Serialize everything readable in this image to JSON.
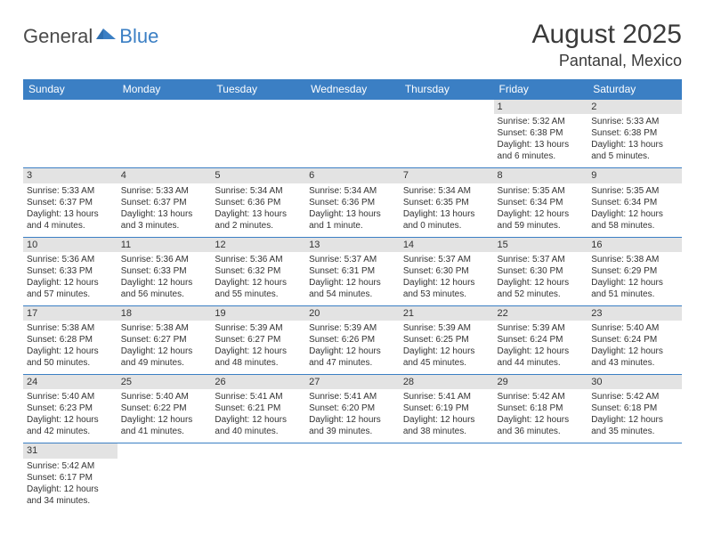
{
  "logo": {
    "part1": "General",
    "part2": "Blue"
  },
  "title": "August 2025",
  "location": "Pantanal, Mexico",
  "colors": {
    "header_bg": "#3b7fc4",
    "header_text": "#ffffff",
    "daynum_bg": "#e3e3e3",
    "border": "#3b7fc4",
    "text": "#333333",
    "logo_gray": "#4a4a4a",
    "logo_blue": "#3b7fc4"
  },
  "weekdays": [
    "Sunday",
    "Monday",
    "Tuesday",
    "Wednesday",
    "Thursday",
    "Friday",
    "Saturday"
  ],
  "weeks": [
    {
      "nums": [
        "",
        "",
        "",
        "",
        "",
        "1",
        "2"
      ],
      "cells": [
        null,
        null,
        null,
        null,
        null,
        {
          "sunrise": "Sunrise: 5:32 AM",
          "sunset": "Sunset: 6:38 PM",
          "day1": "Daylight: 13 hours",
          "day2": "and 6 minutes."
        },
        {
          "sunrise": "Sunrise: 5:33 AM",
          "sunset": "Sunset: 6:38 PM",
          "day1": "Daylight: 13 hours",
          "day2": "and 5 minutes."
        }
      ]
    },
    {
      "nums": [
        "3",
        "4",
        "5",
        "6",
        "7",
        "8",
        "9"
      ],
      "cells": [
        {
          "sunrise": "Sunrise: 5:33 AM",
          "sunset": "Sunset: 6:37 PM",
          "day1": "Daylight: 13 hours",
          "day2": "and 4 minutes."
        },
        {
          "sunrise": "Sunrise: 5:33 AM",
          "sunset": "Sunset: 6:37 PM",
          "day1": "Daylight: 13 hours",
          "day2": "and 3 minutes."
        },
        {
          "sunrise": "Sunrise: 5:34 AM",
          "sunset": "Sunset: 6:36 PM",
          "day1": "Daylight: 13 hours",
          "day2": "and 2 minutes."
        },
        {
          "sunrise": "Sunrise: 5:34 AM",
          "sunset": "Sunset: 6:36 PM",
          "day1": "Daylight: 13 hours",
          "day2": "and 1 minute."
        },
        {
          "sunrise": "Sunrise: 5:34 AM",
          "sunset": "Sunset: 6:35 PM",
          "day1": "Daylight: 13 hours",
          "day2": "and 0 minutes."
        },
        {
          "sunrise": "Sunrise: 5:35 AM",
          "sunset": "Sunset: 6:34 PM",
          "day1": "Daylight: 12 hours",
          "day2": "and 59 minutes."
        },
        {
          "sunrise": "Sunrise: 5:35 AM",
          "sunset": "Sunset: 6:34 PM",
          "day1": "Daylight: 12 hours",
          "day2": "and 58 minutes."
        }
      ]
    },
    {
      "nums": [
        "10",
        "11",
        "12",
        "13",
        "14",
        "15",
        "16"
      ],
      "cells": [
        {
          "sunrise": "Sunrise: 5:36 AM",
          "sunset": "Sunset: 6:33 PM",
          "day1": "Daylight: 12 hours",
          "day2": "and 57 minutes."
        },
        {
          "sunrise": "Sunrise: 5:36 AM",
          "sunset": "Sunset: 6:33 PM",
          "day1": "Daylight: 12 hours",
          "day2": "and 56 minutes."
        },
        {
          "sunrise": "Sunrise: 5:36 AM",
          "sunset": "Sunset: 6:32 PM",
          "day1": "Daylight: 12 hours",
          "day2": "and 55 minutes."
        },
        {
          "sunrise": "Sunrise: 5:37 AM",
          "sunset": "Sunset: 6:31 PM",
          "day1": "Daylight: 12 hours",
          "day2": "and 54 minutes."
        },
        {
          "sunrise": "Sunrise: 5:37 AM",
          "sunset": "Sunset: 6:30 PM",
          "day1": "Daylight: 12 hours",
          "day2": "and 53 minutes."
        },
        {
          "sunrise": "Sunrise: 5:37 AM",
          "sunset": "Sunset: 6:30 PM",
          "day1": "Daylight: 12 hours",
          "day2": "and 52 minutes."
        },
        {
          "sunrise": "Sunrise: 5:38 AM",
          "sunset": "Sunset: 6:29 PM",
          "day1": "Daylight: 12 hours",
          "day2": "and 51 minutes."
        }
      ]
    },
    {
      "nums": [
        "17",
        "18",
        "19",
        "20",
        "21",
        "22",
        "23"
      ],
      "cells": [
        {
          "sunrise": "Sunrise: 5:38 AM",
          "sunset": "Sunset: 6:28 PM",
          "day1": "Daylight: 12 hours",
          "day2": "and 50 minutes."
        },
        {
          "sunrise": "Sunrise: 5:38 AM",
          "sunset": "Sunset: 6:27 PM",
          "day1": "Daylight: 12 hours",
          "day2": "and 49 minutes."
        },
        {
          "sunrise": "Sunrise: 5:39 AM",
          "sunset": "Sunset: 6:27 PM",
          "day1": "Daylight: 12 hours",
          "day2": "and 48 minutes."
        },
        {
          "sunrise": "Sunrise: 5:39 AM",
          "sunset": "Sunset: 6:26 PM",
          "day1": "Daylight: 12 hours",
          "day2": "and 47 minutes."
        },
        {
          "sunrise": "Sunrise: 5:39 AM",
          "sunset": "Sunset: 6:25 PM",
          "day1": "Daylight: 12 hours",
          "day2": "and 45 minutes."
        },
        {
          "sunrise": "Sunrise: 5:39 AM",
          "sunset": "Sunset: 6:24 PM",
          "day1": "Daylight: 12 hours",
          "day2": "and 44 minutes."
        },
        {
          "sunrise": "Sunrise: 5:40 AM",
          "sunset": "Sunset: 6:24 PM",
          "day1": "Daylight: 12 hours",
          "day2": "and 43 minutes."
        }
      ]
    },
    {
      "nums": [
        "24",
        "25",
        "26",
        "27",
        "28",
        "29",
        "30"
      ],
      "cells": [
        {
          "sunrise": "Sunrise: 5:40 AM",
          "sunset": "Sunset: 6:23 PM",
          "day1": "Daylight: 12 hours",
          "day2": "and 42 minutes."
        },
        {
          "sunrise": "Sunrise: 5:40 AM",
          "sunset": "Sunset: 6:22 PM",
          "day1": "Daylight: 12 hours",
          "day2": "and 41 minutes."
        },
        {
          "sunrise": "Sunrise: 5:41 AM",
          "sunset": "Sunset: 6:21 PM",
          "day1": "Daylight: 12 hours",
          "day2": "and 40 minutes."
        },
        {
          "sunrise": "Sunrise: 5:41 AM",
          "sunset": "Sunset: 6:20 PM",
          "day1": "Daylight: 12 hours",
          "day2": "and 39 minutes."
        },
        {
          "sunrise": "Sunrise: 5:41 AM",
          "sunset": "Sunset: 6:19 PM",
          "day1": "Daylight: 12 hours",
          "day2": "and 38 minutes."
        },
        {
          "sunrise": "Sunrise: 5:42 AM",
          "sunset": "Sunset: 6:18 PM",
          "day1": "Daylight: 12 hours",
          "day2": "and 36 minutes."
        },
        {
          "sunrise": "Sunrise: 5:42 AM",
          "sunset": "Sunset: 6:18 PM",
          "day1": "Daylight: 12 hours",
          "day2": "and 35 minutes."
        }
      ]
    },
    {
      "nums": [
        "31",
        "",
        "",
        "",
        "",
        "",
        ""
      ],
      "cells": [
        {
          "sunrise": "Sunrise: 5:42 AM",
          "sunset": "Sunset: 6:17 PM",
          "day1": "Daylight: 12 hours",
          "day2": "and 34 minutes."
        },
        null,
        null,
        null,
        null,
        null,
        null
      ]
    }
  ]
}
